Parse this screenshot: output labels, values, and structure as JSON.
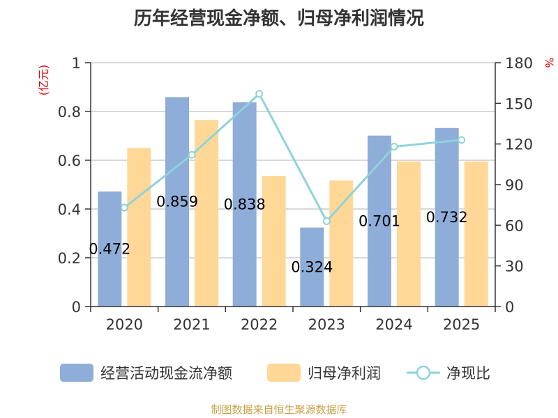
{
  "chart_data": {
    "type": "bar",
    "title": "历年经营现金净额、归母净利润情况",
    "categories": [
      "2020",
      "2021",
      "2022",
      "2023",
      "2024",
      "2025"
    ],
    "series": [
      {
        "name": "经营活动现金流净额",
        "kind": "bar",
        "axis": "left",
        "color": "#8eadd9",
        "values": [
          0.472,
          0.859,
          0.838,
          0.324,
          0.701,
          0.732
        ],
        "labels": [
          "0.472",
          "0.859",
          "0.838",
          "0.324",
          "0.701",
          "0.732"
        ]
      },
      {
        "name": "归母净利润",
        "kind": "bar",
        "axis": "left",
        "color": "#ffd797",
        "values": [
          0.65,
          0.765,
          0.535,
          0.517,
          0.595,
          0.595
        ]
      },
      {
        "name": "净现比",
        "kind": "line",
        "axis": "right",
        "color": "#8fd3d9",
        "values": [
          73,
          112,
          157,
          63,
          118,
          123
        ]
      }
    ],
    "y_left": {
      "label": "(亿元)",
      "min": 0,
      "max": 1,
      "ticks": [
        0,
        0.2,
        0.4,
        0.6,
        0.8,
        1
      ],
      "tick_labels": [
        "0",
        "0.2",
        "0.4",
        "0.6",
        "0.8",
        "1"
      ]
    },
    "y_right": {
      "label": "%",
      "min": 0,
      "max": 180,
      "ticks": [
        0,
        30,
        60,
        90,
        120,
        150,
        180
      ],
      "tick_labels": [
        "0",
        "30",
        "60",
        "90",
        "120",
        "150",
        "180"
      ]
    },
    "legend_position": "bottom",
    "grid": true
  },
  "source": "制图数据来自恒生聚源数据库",
  "colors": {
    "axis": "#333333",
    "grid": "#cccccc",
    "unit": "#e00000"
  }
}
